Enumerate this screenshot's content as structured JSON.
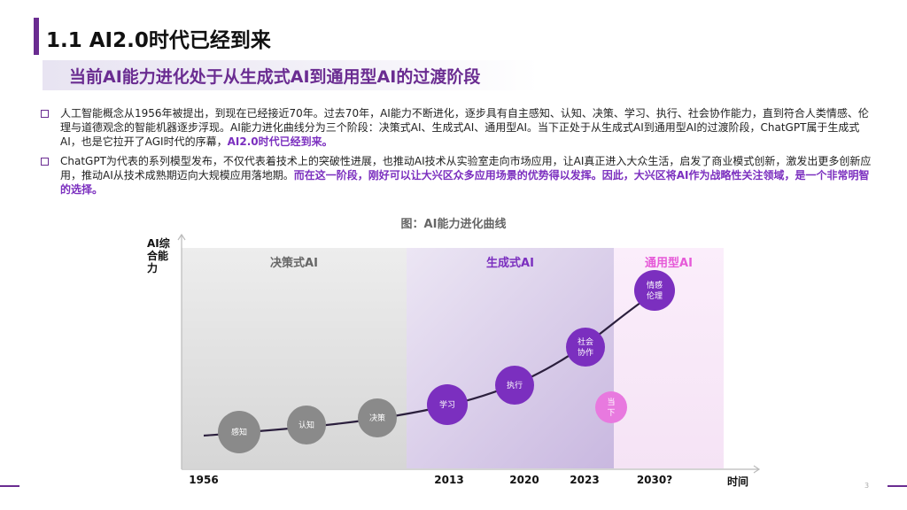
{
  "title": "1.1 AI2.0时代已经到来",
  "subtitle": "当前AI能力进化处于从生成式AI到通用型AI的过渡阶段",
  "bullets": [
    {
      "text": "人工智能概念从1956年被提出，到现在已经接近70年。过去70年，AI能力不断进化，逐步具有自主感知、认知、决策、学习、执行、社会协作能力，直到符合人类情感、伦理与道德观念的智能机器逐步浮现。AI能力进化曲线分为三个阶段：决策式AI、生成式AI、通用型AI。当下正处于从生成式AI到通用型AI的过渡阶段，ChatGPT属于生成式AI，也是它拉开了AGI时代的序幕，",
      "highlight": "AI2.0时代已经到来。"
    },
    {
      "text": "ChatGPT为代表的系列模型发布，不仅代表着技术上的突破性进展，也推动AI技术从实验室走向市场应用，让AI真正进入大众生活，启发了商业模式创新，激发出更多创新应用，推动AI从技术成熟期迈向大规模应用落地期。",
      "highlight": "而在这一阶段，刚好可以让大兴区众多应用场景的优势得以发挥。因此，大兴区将AI作为战略性关注领域，是一个非常明智的选择。"
    }
  ],
  "caption": "图：AI能力进化曲线",
  "chart_data": {
    "type": "line",
    "title": "AI能力进化曲线",
    "ylabel": "AI综合能力",
    "xlabel": "时间",
    "x_ticks": [
      "1956",
      "2013",
      "2020",
      "2023",
      "2030?"
    ],
    "stages": [
      {
        "name": "决策式AI",
        "color": "#e2e2e2",
        "label_color": "#666666"
      },
      {
        "name": "生成式AI",
        "color": "#dcd3ea",
        "label_color": "#7b2fbf"
      },
      {
        "name": "通用型AI",
        "color": "#f6e8f6",
        "label_color": "#e65ad8"
      }
    ],
    "milestones": [
      {
        "label": "感知",
        "color": "#8a8a8a"
      },
      {
        "label": "认知",
        "color": "#8a8a8a"
      },
      {
        "label": "决策",
        "color": "#8a8a8a"
      },
      {
        "label": "学习",
        "color": "#7b2fbf"
      },
      {
        "label": "执行",
        "color": "#7b2fbf"
      },
      {
        "label": "社会协作",
        "color": "#7b2fbf"
      },
      {
        "label": "情感伦理",
        "color": "#7b2fbf"
      }
    ],
    "current_marker": {
      "label": "当下",
      "color": "#e879df"
    }
  },
  "page_number": "3"
}
